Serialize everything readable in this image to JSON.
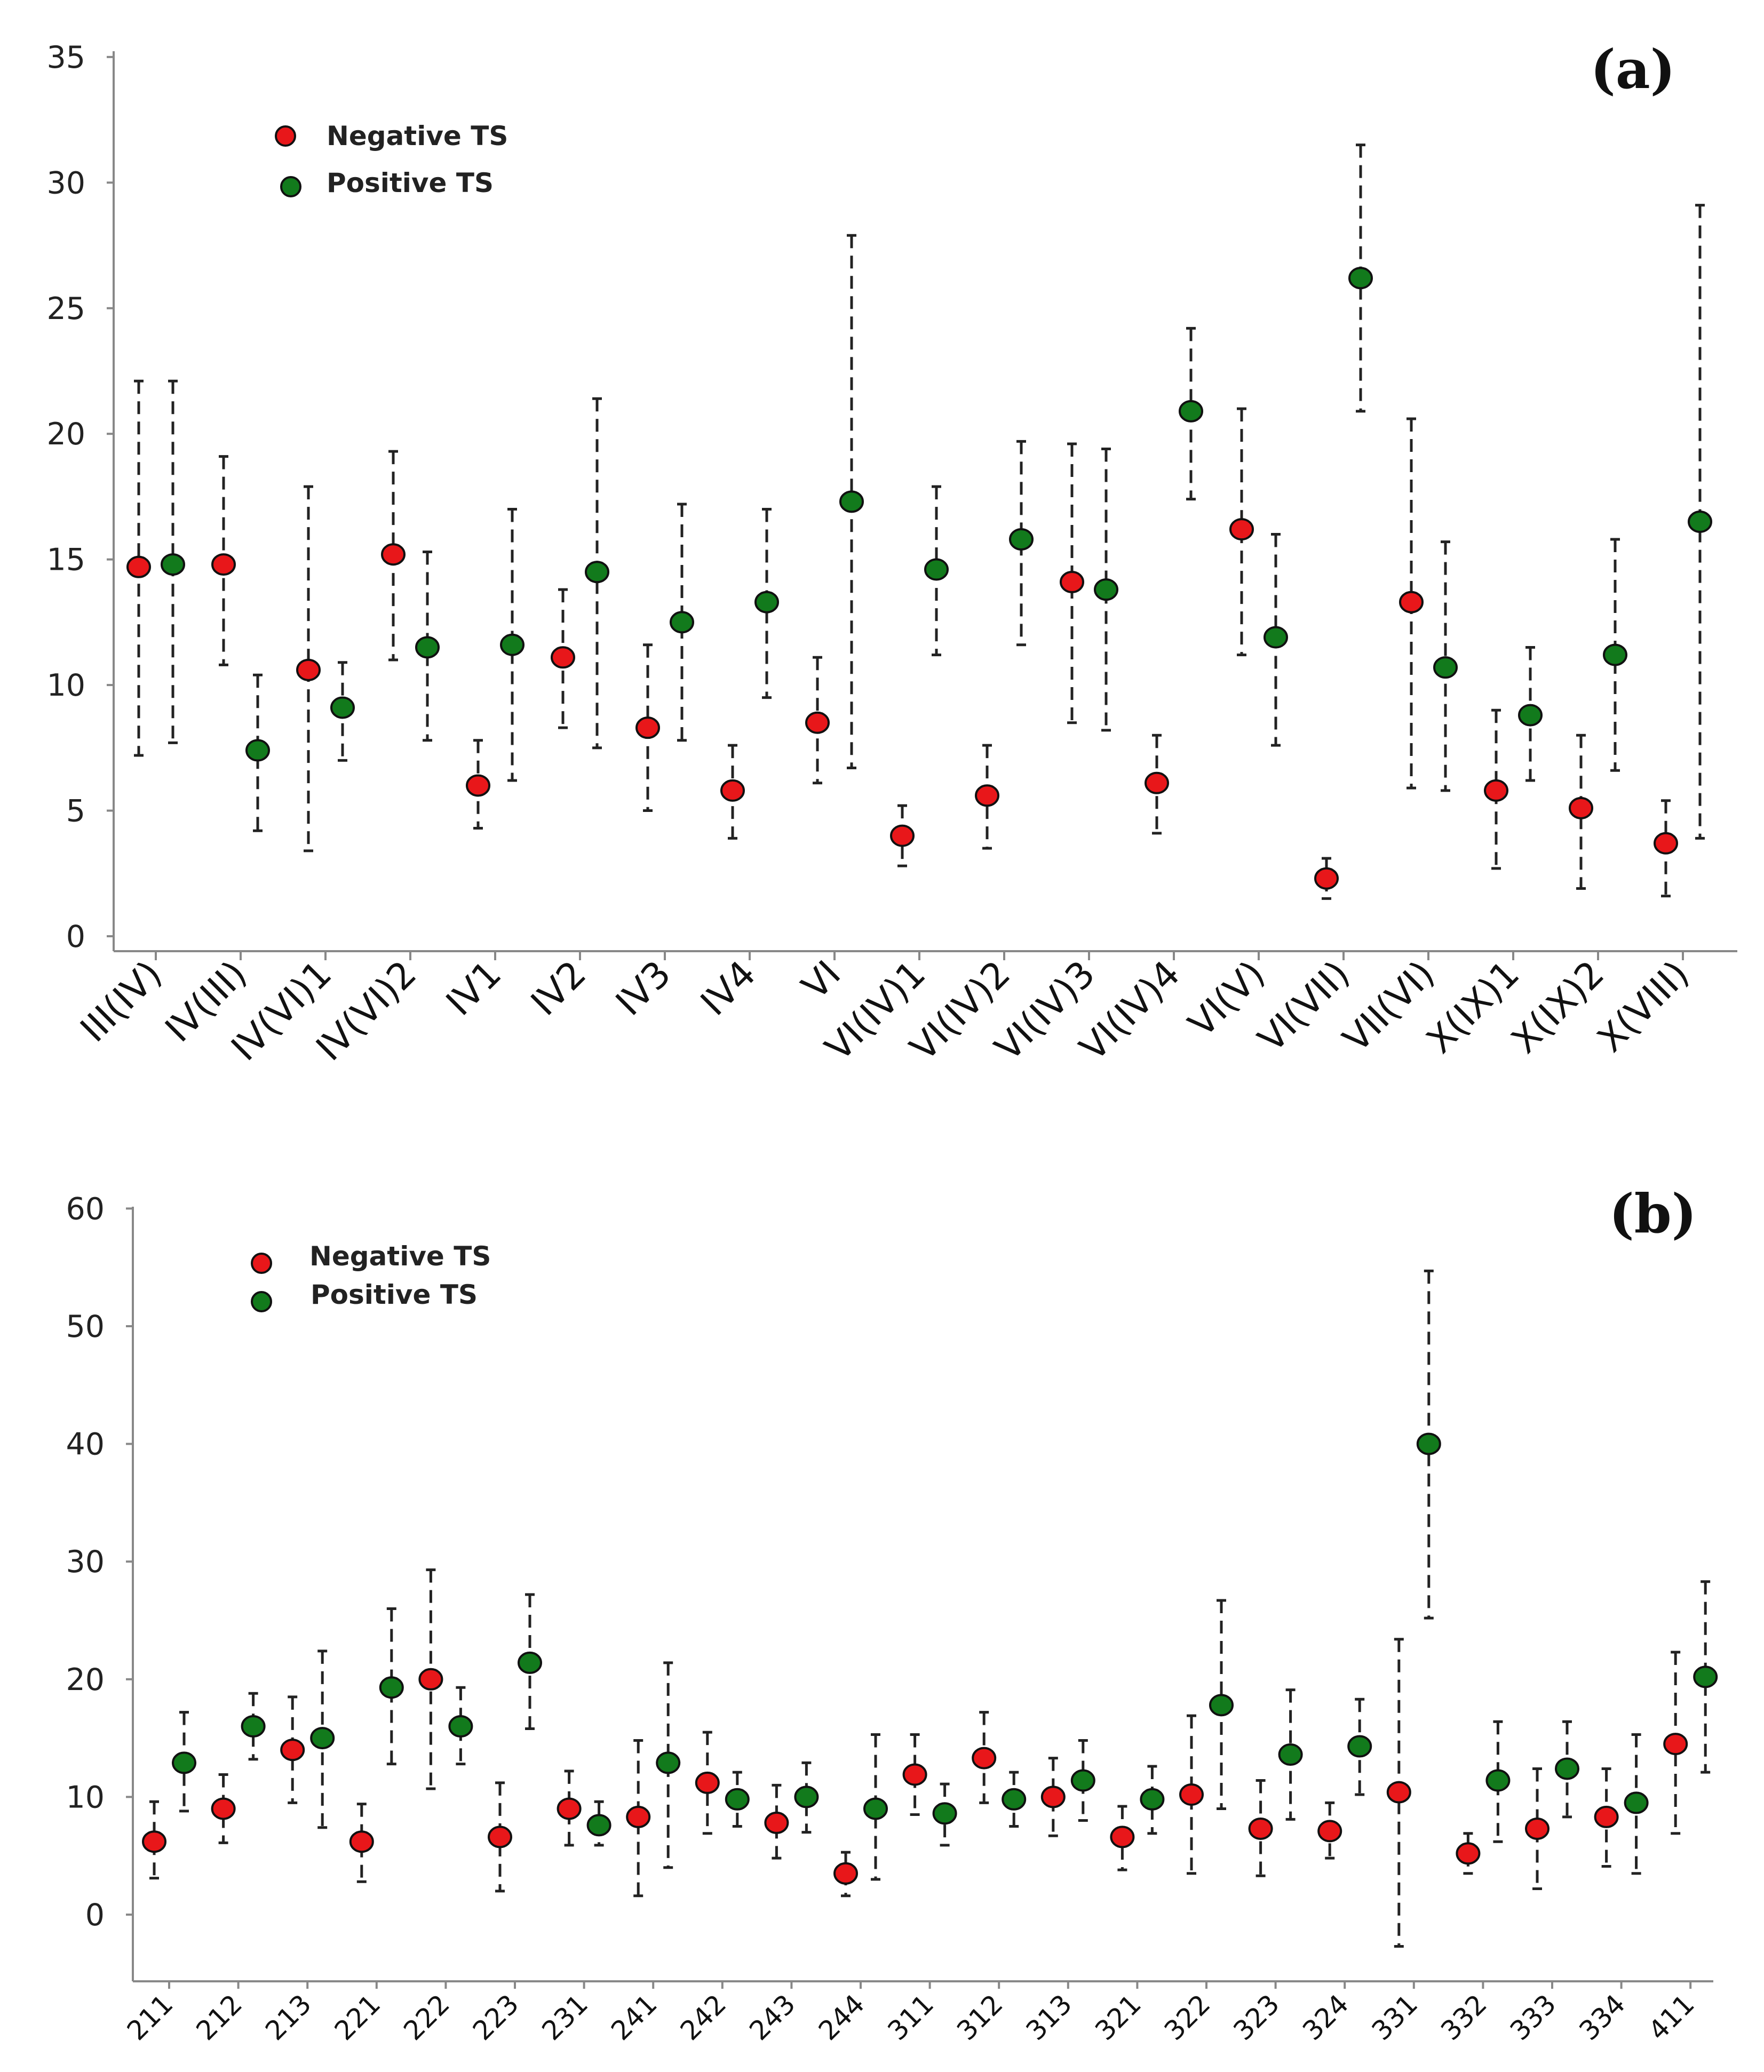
{
  "colors": {
    "negative": "#e8171a",
    "positive": "#127a1c"
  },
  "chart_data": [
    {
      "panel_label": "(a)",
      "type": "scatter",
      "title": "",
      "xlabel": "",
      "ylabel": "",
      "ylim": [
        0,
        35
      ],
      "yticks": [
        0,
        5,
        10,
        15,
        20,
        25,
        30,
        35
      ],
      "legend": {
        "position": "top-left",
        "entries": [
          "Negative TS",
          "Positive TS"
        ]
      },
      "categories": [
        "III(IV)",
        "IV(III)",
        "IV(VI)1",
        "IV(VI)2",
        "IV1",
        "IV2",
        "IV3",
        "IV4",
        "VI",
        "VI(IV)1",
        "VI(IV)2",
        "VI(IV)3",
        "VI(IV)4",
        "VI(V)",
        "VI(VII)",
        "VII(VI)",
        "X(IX)1",
        "X(IX)2",
        "X(VIII)"
      ],
      "series": [
        {
          "name": "Negative TS",
          "values": [
            14.7,
            14.8,
            10.6,
            15.2,
            6.0,
            11.1,
            8.3,
            5.8,
            8.5,
            4.0,
            5.6,
            14.1,
            6.1,
            16.2,
            2.3,
            13.3,
            5.8,
            5.1,
            3.7
          ],
          "lower": [
            7.2,
            10.8,
            3.4,
            11.0,
            4.3,
            8.3,
            5.0,
            3.9,
            6.1,
            2.8,
            3.5,
            8.5,
            4.1,
            11.2,
            1.5,
            5.9,
            2.7,
            1.9,
            1.6
          ],
          "upper": [
            22.1,
            19.1,
            17.9,
            19.3,
            7.8,
            13.8,
            11.6,
            7.6,
            11.1,
            5.2,
            7.6,
            19.6,
            8.0,
            21.0,
            3.1,
            20.6,
            9.0,
            8.0,
            5.4
          ]
        },
        {
          "name": "Positive TS",
          "values": [
            14.8,
            7.4,
            9.1,
            11.5,
            11.6,
            14.5,
            12.5,
            13.3,
            17.3,
            14.6,
            15.8,
            13.8,
            20.9,
            11.9,
            26.2,
            10.7,
            8.8,
            11.2,
            16.5
          ],
          "lower": [
            7.7,
            4.2,
            7.0,
            7.8,
            6.2,
            7.5,
            7.8,
            9.5,
            6.7,
            11.2,
            11.6,
            8.2,
            17.4,
            7.6,
            20.9,
            5.8,
            6.2,
            6.6,
            3.9
          ],
          "upper": [
            22.1,
            10.4,
            10.9,
            15.3,
            17.0,
            21.4,
            17.2,
            17.0,
            27.9,
            17.9,
            19.7,
            19.4,
            24.2,
            16.0,
            31.5,
            15.7,
            11.5,
            15.8,
            29.1
          ]
        }
      ]
    },
    {
      "panel_label": "(b)",
      "type": "scatter",
      "title": "",
      "xlabel": "",
      "ylabel": "",
      "ylim": [
        -6,
        60
      ],
      "yticks": [
        0,
        10,
        20,
        30,
        40,
        50,
        60
      ],
      "legend": {
        "position": "top-left",
        "entries": [
          "Negative TS",
          "Positive TS"
        ]
      },
      "categories": [
        "211",
        "212",
        "213",
        "221",
        "222",
        "223",
        "231",
        "241",
        "242",
        "243",
        "244",
        "311",
        "312",
        "313",
        "321",
        "322",
        "323",
        "324",
        "331",
        "332",
        "333",
        "334",
        "411"
      ],
      "points": [
        {
          "category": "211",
          "series": "Negative TS",
          "value": 6.2,
          "lower": 3.1,
          "upper": 9.6
        },
        {
          "category": "211",
          "series": "Positive TS",
          "value": 12.9,
          "lower": 8.8,
          "upper": 17.2
        },
        {
          "category": "212",
          "series": "Negative TS",
          "value": 9.0,
          "lower": 6.1,
          "upper": 11.9
        },
        {
          "category": "212",
          "series": "Positive TS",
          "value": 16.0,
          "lower": 13.2,
          "upper": 18.8
        },
        {
          "category": "213",
          "series": "Negative TS",
          "value": 14.0,
          "lower": 9.5,
          "upper": 18.5
        },
        {
          "category": "213",
          "series": "Positive TS",
          "value": 15.0,
          "lower": 7.4,
          "upper": 22.4
        },
        {
          "category": "221",
          "series": "Negative TS",
          "value": 6.2,
          "lower": 2.8,
          "upper": 9.4
        },
        {
          "category": "221",
          "series": "Positive TS",
          "value": 19.3,
          "lower": 12.8,
          "upper": 26.0
        },
        {
          "category": "222",
          "series": "Negative TS",
          "value": 20.0,
          "lower": 10.7,
          "upper": 29.3
        },
        {
          "category": "222",
          "series": "Positive TS",
          "value": 16.0,
          "lower": 12.8,
          "upper": 19.3
        },
        {
          "category": "223",
          "series": "Negative TS",
          "value": 6.6,
          "lower": 2.0,
          "upper": 11.2
        },
        {
          "category": "223",
          "series": "Positive TS",
          "value": 21.4,
          "lower": 15.8,
          "upper": 27.2
        },
        {
          "category": "231",
          "series": "Negative TS",
          "value": 9.0,
          "lower": 5.9,
          "upper": 12.2
        },
        {
          "category": "231",
          "series": "Positive TS",
          "value": 7.6,
          "lower": 5.9,
          "upper": 9.6
        },
        {
          "category": "241",
          "series": "Negative TS",
          "value": 8.3,
          "lower": 1.6,
          "upper": 14.8
        },
        {
          "category": "241",
          "series": "Positive TS",
          "value": 12.9,
          "lower": 4.0,
          "upper": 21.4
        },
        {
          "category": "242",
          "series": "Negative TS",
          "value": 11.2,
          "lower": 6.9,
          "upper": 15.5
        },
        {
          "category": "242",
          "series": "Positive TS",
          "value": 9.8,
          "lower": 7.5,
          "upper": 12.1
        },
        {
          "category": "243",
          "series": "Negative TS",
          "value": 7.8,
          "lower": 4.8,
          "upper": 11.0
        },
        {
          "category": "243",
          "series": "Positive TS",
          "value": 10.0,
          "lower": 7.0,
          "upper": 12.9
        },
        {
          "category": "244",
          "series": "Negative TS",
          "value": 3.5,
          "lower": 1.6,
          "upper": 5.3
        },
        {
          "category": "244",
          "series": "Positive TS",
          "value": 9.0,
          "lower": 3.0,
          "upper": 15.3
        },
        {
          "category": "311",
          "series": "Negative TS",
          "value": 11.9,
          "lower": 8.5,
          "upper": 15.3
        },
        {
          "category": "311",
          "series": "Positive TS",
          "value": 8.6,
          "lower": 5.9,
          "upper": 11.1
        },
        {
          "category": "312",
          "series": "Negative TS",
          "value": 13.3,
          "lower": 9.5,
          "upper": 17.2
        },
        {
          "category": "312",
          "series": "Positive TS",
          "value": 9.8,
          "lower": 7.5,
          "upper": 12.1
        },
        {
          "category": "313",
          "series": "Negative TS",
          "value": 10.0,
          "lower": 6.7,
          "upper": 13.3
        },
        {
          "category": "313",
          "series": "Positive TS",
          "value": 11.4,
          "lower": 8.0,
          "upper": 14.8
        },
        {
          "category": "321",
          "series": "Negative TS",
          "value": 6.6,
          "lower": 3.8,
          "upper": 9.2
        },
        {
          "category": "321",
          "series": "Positive TS",
          "value": 9.8,
          "lower": 6.9,
          "upper": 12.6
        },
        {
          "category": "322",
          "series": "Negative TS",
          "value": 10.2,
          "lower": 3.5,
          "upper": 16.9
        },
        {
          "category": "322",
          "series": "Positive TS",
          "value": 17.8,
          "lower": 9.0,
          "upper": 26.7
        },
        {
          "category": "323",
          "series": "Negative TS",
          "value": 7.3,
          "lower": 3.3,
          "upper": 11.4
        },
        {
          "category": "323",
          "series": "Positive TS",
          "value": 13.6,
          "lower": 8.1,
          "upper": 19.1
        },
        {
          "category": "324",
          "series": "Negative TS",
          "value": 7.1,
          "lower": 4.8,
          "upper": 9.5
        },
        {
          "category": "324",
          "series": "Positive TS",
          "value": 14.3,
          "lower": 10.2,
          "upper": 18.3
        },
        {
          "category": "331",
          "series": "Negative TS",
          "value": 10.4,
          "lower": -2.7,
          "upper": 23.4
        },
        {
          "category": "331",
          "series": "Positive TS",
          "value": 40.0,
          "lower": 25.2,
          "upper": 54.7
        },
        {
          "category": "332",
          "series": "Negative TS",
          "value": 5.2,
          "lower": 3.5,
          "upper": 6.9
        },
        {
          "category": "332",
          "series": "Positive TS",
          "value": 11.4,
          "lower": 6.2,
          "upper": 16.4
        },
        {
          "category": "333",
          "series": "Negative TS",
          "value": 7.3,
          "lower": 2.2,
          "upper": 12.4
        },
        {
          "category": "333",
          "series": "Positive TS",
          "value": 12.4,
          "lower": 8.3,
          "upper": 16.4
        },
        {
          "category": "334",
          "series": "Negative TS",
          "value": 8.3,
          "lower": 4.1,
          "upper": 12.4
        },
        {
          "category": "334",
          "series": "Positive TS",
          "value": 9.5,
          "lower": 3.5,
          "upper": 15.3
        },
        {
          "category": "411",
          "series": "Negative TS",
          "value": 14.5,
          "lower": 6.9,
          "upper": 22.3
        },
        {
          "category": "411",
          "series": "Positive TS",
          "value": 20.2,
          "lower": 12.1,
          "upper": 28.3
        }
      ]
    }
  ]
}
